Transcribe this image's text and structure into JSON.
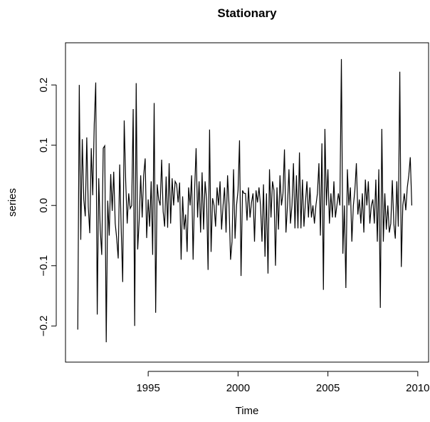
{
  "chart_data": {
    "type": "line",
    "title": "Stationary",
    "xlabel": "Time",
    "ylabel": "series",
    "xlim": [
      1990.4,
      2010.6
    ],
    "ylim": [
      -0.26,
      0.27
    ],
    "x_ticks": [
      1995,
      2000,
      2005,
      2010
    ],
    "x_tick_labels": [
      "1995",
      "2000",
      "2005",
      "2010"
    ],
    "y_ticks": [
      -0.2,
      -0.1,
      0.0,
      0.1,
      0.2
    ],
    "y_tick_labels": [
      "-0.2",
      "-0.1",
      "0.0",
      "0.1",
      "0.2"
    ],
    "grid": false,
    "legend": "none",
    "series": [
      {
        "x_start": 1991.083,
        "x_step": 0.08333,
        "color": "#000000",
        "values": [
          -0.206,
          0.2,
          -0.057,
          0.11,
          0.01,
          -0.018,
          0.113,
          -0.002,
          -0.046,
          0.095,
          0.017,
          0.135,
          0.204,
          -0.181,
          0.045,
          -0.04,
          -0.082,
          0.095,
          0.099,
          -0.227,
          0.008,
          -0.05,
          0.052,
          -0.009,
          0.056,
          -0.03,
          -0.055,
          -0.088,
          0.068,
          -0.04,
          -0.127,
          0.141,
          0.04,
          -0.03,
          0.02,
          -0.005,
          0.0,
          0.16,
          -0.2,
          0.203,
          -0.073,
          -0.025,
          0.05,
          -0.02,
          0.05,
          0.078,
          -0.054,
          0.01,
          -0.035,
          0.04,
          -0.082,
          0.17,
          -0.178,
          0.035,
          0.01,
          0.0,
          0.076,
          -0.01,
          -0.035,
          0.048,
          -0.037,
          0.07,
          -0.03,
          0.045,
          0.0,
          0.04,
          0.035,
          0.005,
          0.038,
          -0.09,
          0.015,
          -0.04,
          -0.015,
          -0.077,
          0.03,
          0.0,
          0.05,
          -0.09,
          0.025,
          0.095,
          -0.02,
          0.04,
          -0.045,
          0.055,
          -0.04,
          0.04,
          0.01,
          -0.107,
          0.126,
          -0.077,
          0.012,
          0.0,
          -0.035,
          0.03,
          0.0,
          0.04,
          -0.04,
          0.0,
          0.03,
          -0.045,
          0.05,
          0.0,
          -0.09,
          -0.06,
          0.06,
          -0.055,
          0.0,
          0.025,
          0.108,
          -0.117,
          0.025,
          0.02,
          0.02,
          -0.025,
          0.03,
          -0.02,
          0.005,
          0.02,
          -0.06,
          0.025,
          0.005,
          0.03,
          0.0,
          -0.06,
          0.035,
          -0.085,
          0.02,
          -0.113,
          0.06,
          -0.02,
          0.04,
          0.025,
          -0.1,
          0.03,
          -0.04,
          0.05,
          0.0,
          0.02,
          0.093,
          -0.045,
          0.0,
          0.06,
          -0.03,
          0.0,
          0.07,
          -0.038,
          0.05,
          -0.038,
          0.088,
          -0.038,
          0.043,
          -0.035,
          0.005,
          0.04,
          -0.02,
          0.03,
          -0.02,
          0.0,
          -0.03,
          0.0,
          0.02,
          0.07,
          -0.05,
          0.103,
          -0.14,
          0.127,
          0.0,
          0.06,
          -0.03,
          0.02,
          -0.02,
          0.04,
          -0.02,
          0.0,
          0.02,
          0.0,
          0.243,
          -0.08,
          0.0,
          -0.137,
          0.06,
          0.0,
          0.03,
          -0.06,
          0.0,
          0.025,
          0.07,
          -0.015,
          0.01,
          -0.03,
          0.02,
          -0.045,
          0.043,
          0.0,
          0.04,
          -0.03,
          0.0,
          0.01,
          -0.03,
          0.043,
          -0.06,
          0.06,
          -0.17,
          0.127,
          -0.06,
          0.02,
          -0.04,
          0.0,
          -0.045,
          -0.03,
          0.042,
          -0.03,
          -0.055,
          0.04,
          -0.035,
          0.222,
          -0.102,
          0.0,
          0.02,
          -0.008,
          0.03,
          0.05,
          0.08,
          0.0
        ]
      }
    ]
  }
}
